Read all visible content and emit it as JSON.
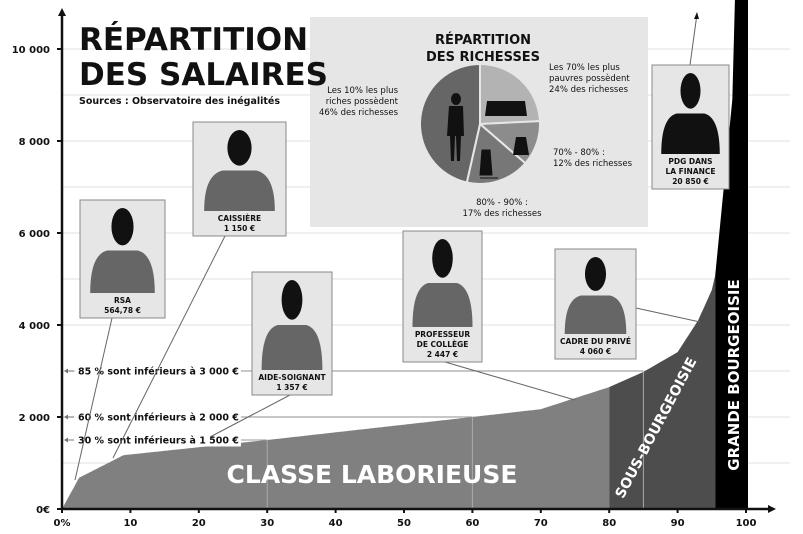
{
  "title_line1": "RÉPARTITION",
  "title_line2": "DES SALAIRES",
  "source": "Sources : Observatoire des inégalités",
  "colors": {
    "laborieuse": "#808080",
    "sous_bourgeoisie": "#4d4d4d",
    "grande_bourgeoisie": "#000000",
    "card_bg": "#e6e6e6",
    "pie_box": "#e6e6e6"
  },
  "chart_data": [
    {
      "type": "area",
      "xlabel": "",
      "ylabel": "",
      "xlim": [
        0,
        100
      ],
      "ylim": [
        0,
        10000
      ],
      "x_ticks": [
        "0%",
        "10",
        "20",
        "30",
        "40",
        "50",
        "60",
        "70",
        "80",
        "90",
        "100"
      ],
      "y_ticks": [
        "0€",
        "2 000",
        "4 000",
        "6 000",
        "8 000",
        "10 000"
      ],
      "grid": true,
      "x": [
        0,
        2.5,
        9,
        30,
        60,
        70,
        80,
        85,
        90,
        93,
        95,
        96,
        97,
        98,
        98.5
      ],
      "y": [
        0,
        680,
        1170,
        1500,
        2000,
        2170,
        2650,
        2980,
        3410,
        4100,
        4760,
        5400,
        6700,
        8900,
        11000
      ],
      "regions": [
        {
          "name": "CLASSE LABORIEUSE",
          "from": 0,
          "to": 80
        },
        {
          "name": "SOUS-BOURGEOISIE",
          "from": 80,
          "to": 95.5
        },
        {
          "name": "GRANDE BOURGEOISIE",
          "from": 95.5,
          "to": 100
        }
      ],
      "annotations": [
        {
          "text": "85 % sont inférieurs à 3 000 €",
          "x": 85,
          "y": 3000
        },
        {
          "text": "60 % sont inférieurs à 2 000 €",
          "x": 60,
          "y": 2000
        },
        {
          "text": "30 % sont inférieurs à 1 500 €",
          "x": 30,
          "y": 1500
        }
      ],
      "professions": [
        {
          "name": "RSA",
          "salary": "564,78 €"
        },
        {
          "name": "CAISSIÈRE",
          "salary": "1 150 €"
        },
        {
          "name": "AIDE-SOIGNANT",
          "salary": "1 357 €"
        },
        {
          "name": "PROFESSEUR DE COLLÈGE",
          "name_l1": "PROFESSEUR",
          "name_l2": "DE COLLÈGE",
          "salary": "2 447 €"
        },
        {
          "name": "CADRE DU PRIVÉ",
          "salary": "4 060 €"
        },
        {
          "name": "PDG DANS LA FINANCE",
          "name_l1": "PDG DANS",
          "name_l2": "LA FINANCE",
          "salary": "20 850 €"
        }
      ]
    },
    {
      "type": "pie",
      "title_line1": "RÉPARTITION",
      "title_line2": "DES RICHESSES",
      "slices": [
        {
          "label": [
            "Les 70% les plus",
            "pauvres possèdent",
            "24% des richesses"
          ],
          "value": 24,
          "color": "#b3b3b3"
        },
        {
          "label": [
            "70% - 80% :",
            "12% des richesses"
          ],
          "value": 12,
          "color": "#8c8c8c"
        },
        {
          "label": [
            "80% - 90% :",
            "17% des richesses"
          ],
          "value": 17,
          "color": "#777777"
        },
        {
          "label": [
            "Les 10% les plus",
            "riches possèdent",
            "46% des richesses"
          ],
          "value": 46,
          "color": "#666666"
        }
      ]
    }
  ]
}
